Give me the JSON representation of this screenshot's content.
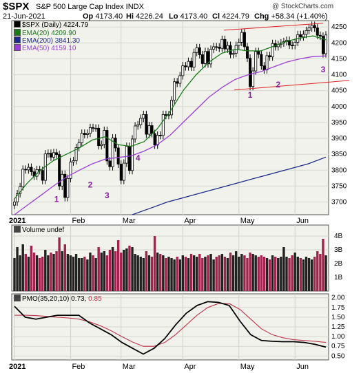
{
  "header": {
    "symbol": "$SPX",
    "name": "S&P 500 Large Cap Index  INDX",
    "copyright": "@ StockCharts.com",
    "date": "21-Jun-2021",
    "open_label": "Op",
    "open": "4173.40",
    "high_label": "Hi",
    "high": "4226.24",
    "low_label": "Lo",
    "low": "4173.40",
    "close_label": "Cl",
    "close": "4224.79",
    "change_label": "Chg",
    "change": "+58.34 (+1.40%)"
  },
  "legend": {
    "price": "$SPX (Daily) 4224.79",
    "ema20": "EMA(20) 4209.90",
    "ema200": "EMA(200) 3841.30",
    "ema50": "EMA(50) 4159.10",
    "volume": "Volume undef",
    "pmo_main": "PMO(35,20,10) 0.73,",
    "pmo_signal": "0.85"
  },
  "colors": {
    "ema20": "#1a7a1a",
    "ema50": "#9b3fd6",
    "ema200": "#1c2a8c",
    "up": "#000000",
    "down": "#000000",
    "channel": "#e02020",
    "annotation": "#8a1fa0",
    "vol_up": "#222222",
    "vol_down": "#a3224e",
    "pmo": "#000000",
    "pmo_signal": "#c0344a",
    "panel_bg": "#f1f2ec"
  },
  "chart_data": [
    {
      "type": "line",
      "title": "$SPX (Daily)",
      "x_axis_labels": [
        "2021",
        "Feb",
        "Mar",
        "Apr",
        "May",
        "Jun"
      ],
      "y_ticks": [
        3700,
        3750,
        3800,
        3850,
        3900,
        3950,
        4000,
        4050,
        4100,
        4150,
        4200,
        4250
      ],
      "ylim": [
        3660,
        4270
      ],
      "series": [
        {
          "name": "$SPX (Daily)",
          "values": [
            3700,
            3726,
            3748,
            3803,
            3801,
            3809,
            3795,
            3781,
            3802,
            3799,
            3768,
            3851,
            3853,
            3841,
            3855,
            3849,
            3750,
            3787,
            3714,
            3774,
            3826,
            3830,
            3871,
            3886,
            3916,
            3912,
            3916,
            3934,
            3932,
            3932,
            3877,
            3881,
            3925,
            3829,
            3811,
            3901,
            3870,
            3819,
            3768,
            3822,
            3875,
            3799,
            3898,
            3939,
            3943,
            3963,
            3975,
            3913,
            3940,
            3915,
            3879,
            3910,
            3909,
            3975,
            3972,
            3974,
            4020,
            4078,
            4073,
            4097,
            4128,
            4125,
            4142,
            4124,
            4170,
            4185,
            4163,
            4135,
            4173,
            4134,
            4180,
            4188,
            4187,
            4183,
            4211,
            4181,
            4192,
            4164,
            4167,
            4192,
            4202,
            4233,
            4188,
            4152,
            4063,
            4112,
            4173,
            4164,
            4128,
            4115,
            4160,
            4156,
            4198,
            4188,
            4195,
            4200,
            4204,
            4208,
            4193,
            4192,
            4202,
            4226,
            4219,
            4227,
            4239,
            4247,
            4255,
            4247,
            4224,
            4221,
            4166,
            4225
          ]
        },
        {
          "name": "EMA(20)",
          "values": [
            3710,
            3760,
            3800,
            3830,
            3850,
            3870,
            3895,
            3905,
            3880,
            3875,
            3890,
            3930,
            3985,
            4050,
            4100,
            4140,
            4168,
            4180,
            4175,
            4175,
            4190,
            4205,
            4215,
            4222,
            4210
          ]
        },
        {
          "name": "EMA(50)",
          "values": [
            3660,
            3690,
            3720,
            3750,
            3778,
            3800,
            3820,
            3835,
            3840,
            3845,
            3860,
            3880,
            3910,
            3950,
            3990,
            4030,
            4060,
            4085,
            4100,
            4110,
            4125,
            4140,
            4150,
            4157,
            4159
          ]
        },
        {
          "name": "EMA(200)",
          "values": [
            3660,
            3680,
            3700,
            3715,
            3730,
            3745,
            3760,
            3775,
            3790,
            3805,
            3820,
            3841
          ]
        }
      ],
      "channel_lines": [
        {
          "from": [
            "May",
            4240
          ],
          "to": [
            "Jun-21",
            4260
          ]
        },
        {
          "from": [
            "May",
            4052
          ],
          "to": [
            "Jun-21",
            4082
          ]
        }
      ],
      "annotations": [
        "1",
        "2",
        "3",
        "4",
        "1",
        "2",
        "3"
      ]
    },
    {
      "type": "bar",
      "title": "Volume",
      "y_tick_labels": [
        "1B",
        "2B",
        "3B",
        "4B"
      ],
      "ylim": [
        0,
        4.8
      ],
      "values": [
        2.4,
        3.2,
        2.6,
        3.4,
        2.7,
        2.5,
        3.3,
        2.8,
        2.6,
        2.4,
        2.5,
        3.0,
        2.6,
        2.8,
        2.7,
        2.9,
        3.9,
        2.9,
        3.4,
        2.7,
        2.6,
        2.5,
        2.7,
        2.4,
        2.4,
        2.5,
        2.3,
        2.8,
        2.6,
        2.4,
        3.2,
        2.8,
        2.9,
        2.6,
        3.0,
        3.2,
        2.9,
        3.7,
        2.8,
        3.0,
        3.1,
        3.3,
        3.2,
        2.7,
        2.6,
        2.5,
        2.4,
        2.9,
        2.6,
        2.5,
        4.0,
        2.8,
        2.7,
        2.6,
        2.4,
        2.5,
        2.4,
        2.3,
        2.5,
        2.3,
        2.6,
        2.5,
        2.4,
        2.7,
        2.6,
        2.5,
        2.7,
        2.4,
        2.5,
        2.6,
        2.7,
        2.3,
        2.5,
        2.6,
        2.7,
        2.5,
        2.4,
        2.8,
        2.6,
        2.9,
        2.5,
        2.7,
        2.6,
        2.4,
        2.8,
        2.7,
        2.6,
        2.5,
        2.6,
        2.5,
        2.4,
        2.3,
        2.6,
        2.5,
        2.4,
        2.5,
        3.2,
        2.5,
        2.4,
        2.6,
        2.8,
        2.5,
        2.4,
        2.3,
        2.5,
        2.4,
        2.3,
        2.5,
        2.9,
        2.7,
        3.8,
        2.6
      ]
    },
    {
      "type": "line",
      "title": "PMO(35,20,10)",
      "y_ticks": [
        0.5,
        0.75,
        1.0,
        1.25,
        1.5,
        1.75,
        2.0
      ],
      "ylim": [
        0.4,
        2.1
      ],
      "series": [
        {
          "name": "PMO(35,20,10)",
          "values": [
            1.78,
            1.5,
            1.45,
            1.5,
            1.55,
            1.55,
            1.55,
            1.35,
            1.2,
            1.05,
            0.85,
            0.7,
            0.55,
            0.7,
            0.95,
            1.3,
            1.6,
            1.8,
            1.9,
            1.88,
            1.8,
            1.4,
            1.05,
            0.9,
            0.88,
            0.87,
            0.87,
            0.85,
            0.8,
            0.73
          ]
        },
        {
          "name": "signal",
          "values": [
            1.55,
            1.55,
            1.54,
            1.52,
            1.5,
            1.48,
            1.45,
            1.38,
            1.28,
            1.15,
            1.0,
            0.86,
            0.75,
            0.75,
            0.85,
            1.05,
            1.3,
            1.55,
            1.75,
            1.85,
            1.85,
            1.7,
            1.45,
            1.2,
            1.05,
            0.97,
            0.92,
            0.9,
            0.88,
            0.85
          ]
        }
      ]
    }
  ]
}
